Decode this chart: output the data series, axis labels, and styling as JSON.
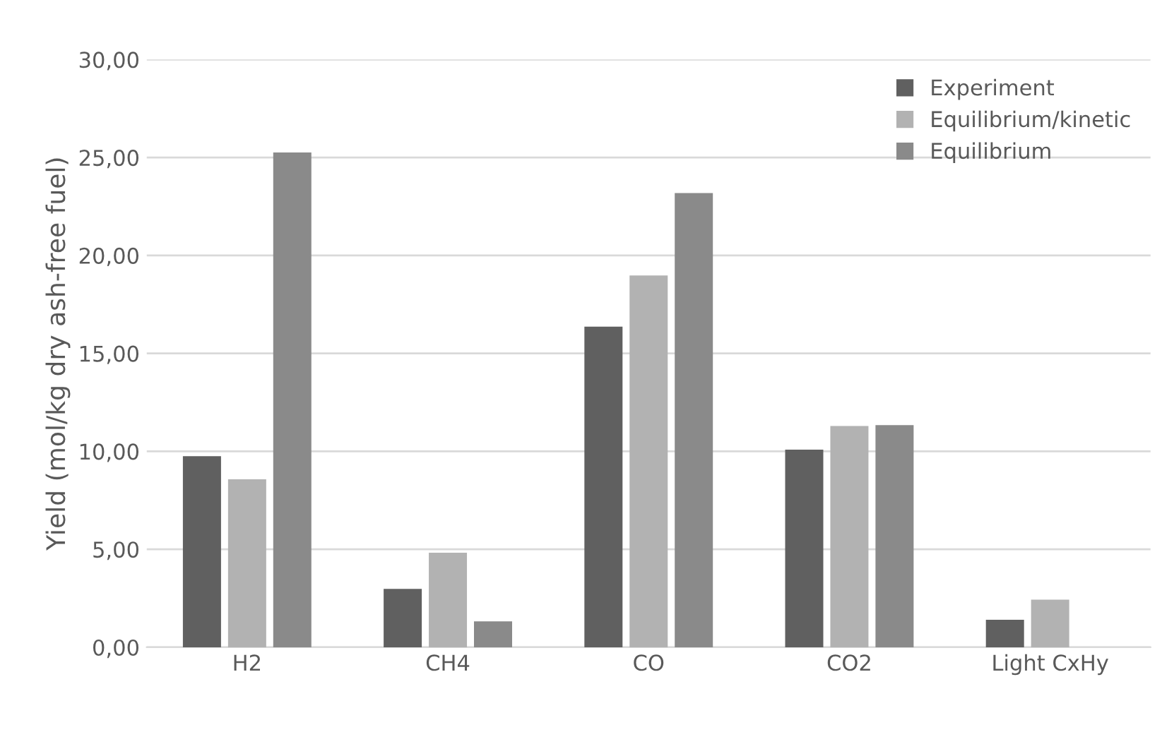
{
  "chart_data": {
    "type": "bar",
    "ylabel": "Yield (mol/kg dry ash-free fuel)",
    "categories": [
      "H2",
      "CH4",
      "CO",
      "CO2",
      "Light CxHy"
    ],
    "series": [
      {
        "name": "Experiment",
        "color": "#606060",
        "values": [
          9.75,
          2.98,
          16.37,
          10.09,
          1.4
        ]
      },
      {
        "name": "Equilibrium/kinetic",
        "color": "#b2b2b2",
        "values": [
          8.57,
          4.83,
          18.98,
          11.29,
          2.43
        ]
      },
      {
        "name": "Equilibrium",
        "color": "#8a8a8a",
        "values": [
          25.26,
          1.32,
          23.18,
          11.34,
          null
        ]
      }
    ],
    "ylim": [
      0,
      30
    ],
    "yticks": [
      {
        "value": 0,
        "label": "0,00"
      },
      {
        "value": 5,
        "label": "5,00"
      },
      {
        "value": 10,
        "label": "10,00"
      },
      {
        "value": 15,
        "label": "15,00"
      },
      {
        "value": 20,
        "label": "20,00"
      },
      {
        "value": 25,
        "label": "25,00"
      },
      {
        "value": 30,
        "label": "30,00"
      }
    ],
    "grid": "y",
    "legend": "top right"
  }
}
